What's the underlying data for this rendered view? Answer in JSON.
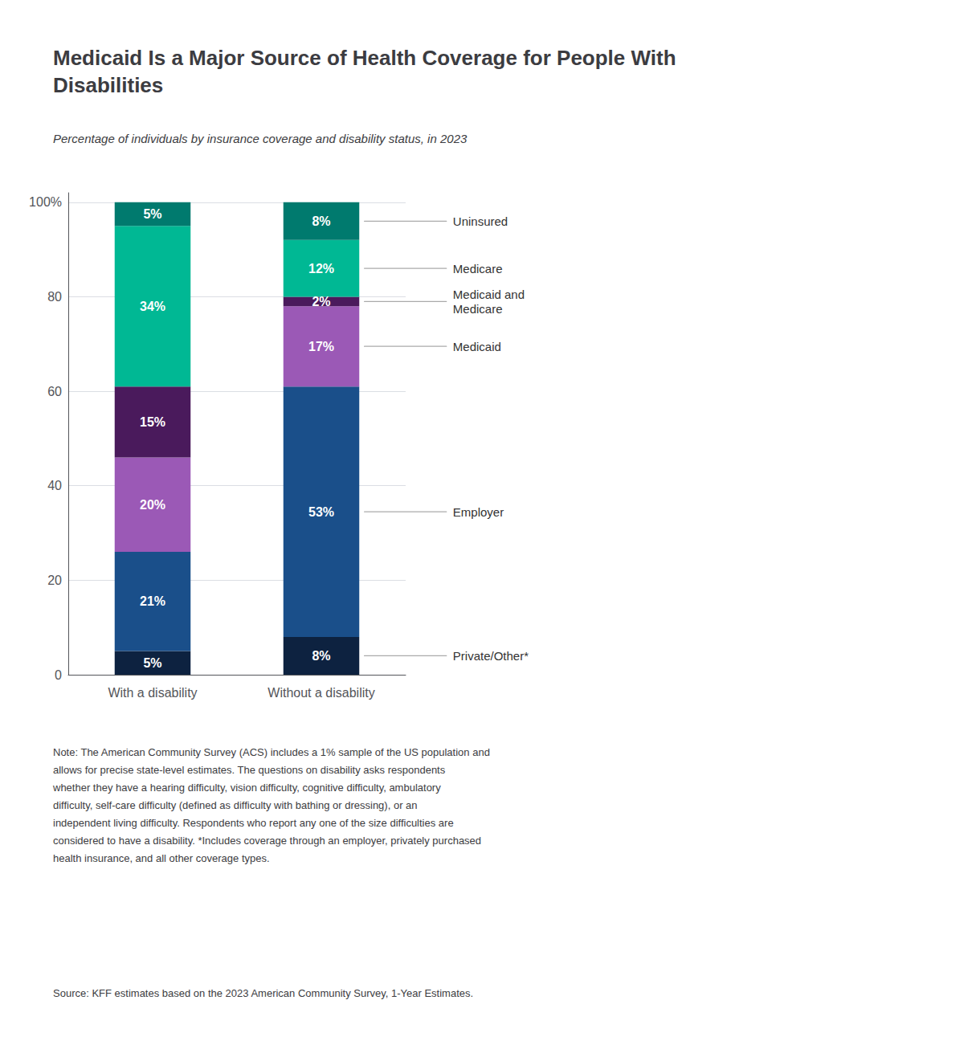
{
  "chart_data": {
    "type": "bar",
    "title": "Medicaid Is a Major Source of Health Coverage for People With\nDisabilities",
    "subtitle": "Percentage of individuals by insurance coverage and disability status, in 2023",
    "note": "Note: The American Community Survey (ACS) includes a 1% sample of the US population and\nallows for precise state-level estimates. The questions on disability asks respondents\nwhether they have a hearing difficulty, vision difficulty, cognitive difficulty, ambulatory\ndifficulty, self-care difficulty (defined as difficulty with bathing or dressing), or an\nindependent living difficulty. Respondents who report any one of the size difficulties are\nconsidered to have a disability. *Includes coverage through an employer, privately purchased\nhealth insurance, and all other coverage types.",
    "source": "Source: KFF estimates based on the 2023 American Community Survey, 1-Year Estimates.",
    "categories": [
      "With a disability",
      "Without a disability"
    ],
    "series": [
      {
        "name": "Private/Other*",
        "color": "#0d2240",
        "values": [
          5,
          8
        ],
        "value_labels": [
          "5%",
          "8%"
        ]
      },
      {
        "name": "Employer",
        "color": "#1a4f8a",
        "values": [
          21,
          53
        ],
        "value_labels": [
          "21%",
          "53%"
        ]
      },
      {
        "name": "Medicaid",
        "color": "#9b59b6",
        "values": [
          20,
          17
        ],
        "value_labels": [
          "20%",
          "17%"
        ]
      },
      {
        "name": "Medicaid and\nMedicare",
        "color": "#4a1a5c",
        "values": [
          15,
          2
        ],
        "value_labels": [
          "15%",
          "2%"
        ]
      },
      {
        "name": "Medicare",
        "color": "#00b894",
        "values": [
          34,
          12
        ],
        "value_labels": [
          "34%",
          "12%"
        ]
      },
      {
        "name": "Uninsured",
        "color": "#007a6e",
        "values": [
          5,
          8
        ],
        "value_labels": [
          "5%",
          "8%"
        ]
      }
    ],
    "ylim": [
      0,
      102
    ],
    "yticks": [
      0,
      20,
      40,
      60,
      80,
      {
        "value": 100,
        "label": "100%"
      }
    ],
    "grid": true,
    "stacked": true,
    "data_labels": true
  }
}
